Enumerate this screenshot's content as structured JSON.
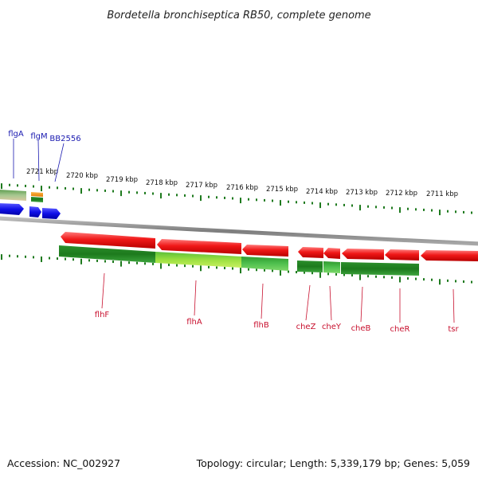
{
  "title": "Bordetella bronchiseptica RB50, complete genome",
  "footer": {
    "accession": "Accession: NC_002927",
    "summary": "Topology: circular; Length: 5,339,179 bp; Genes: 5,059"
  },
  "colors": {
    "forward_gene": "#1515e0",
    "reverse_gene": "#e01010",
    "tick": "#1e7a1e",
    "forward_label": "#1a1ab0",
    "reverse_label": "#c8102e",
    "backbone": "#8a8a8a"
  },
  "ticks": [
    "2721 kbp",
    "2720 kbp",
    "2719 kbp",
    "2718 kbp",
    "2717 kbp",
    "2716 kbp",
    "2715 kbp",
    "2714 kbp",
    "2713 kbp",
    "2712 kbp",
    "2711 kbp"
  ],
  "top_genes": [
    {
      "label": "flgA"
    },
    {
      "label": "flgM"
    },
    {
      "label": "BB2556"
    }
  ],
  "bottom_genes": [
    {
      "label": "flhF"
    },
    {
      "label": "flhA"
    },
    {
      "label": "flhB"
    },
    {
      "label": "cheZ"
    },
    {
      "label": "cheY"
    },
    {
      "label": "cheB"
    },
    {
      "label": "cheR"
    },
    {
      "label": "tsr"
    }
  ]
}
